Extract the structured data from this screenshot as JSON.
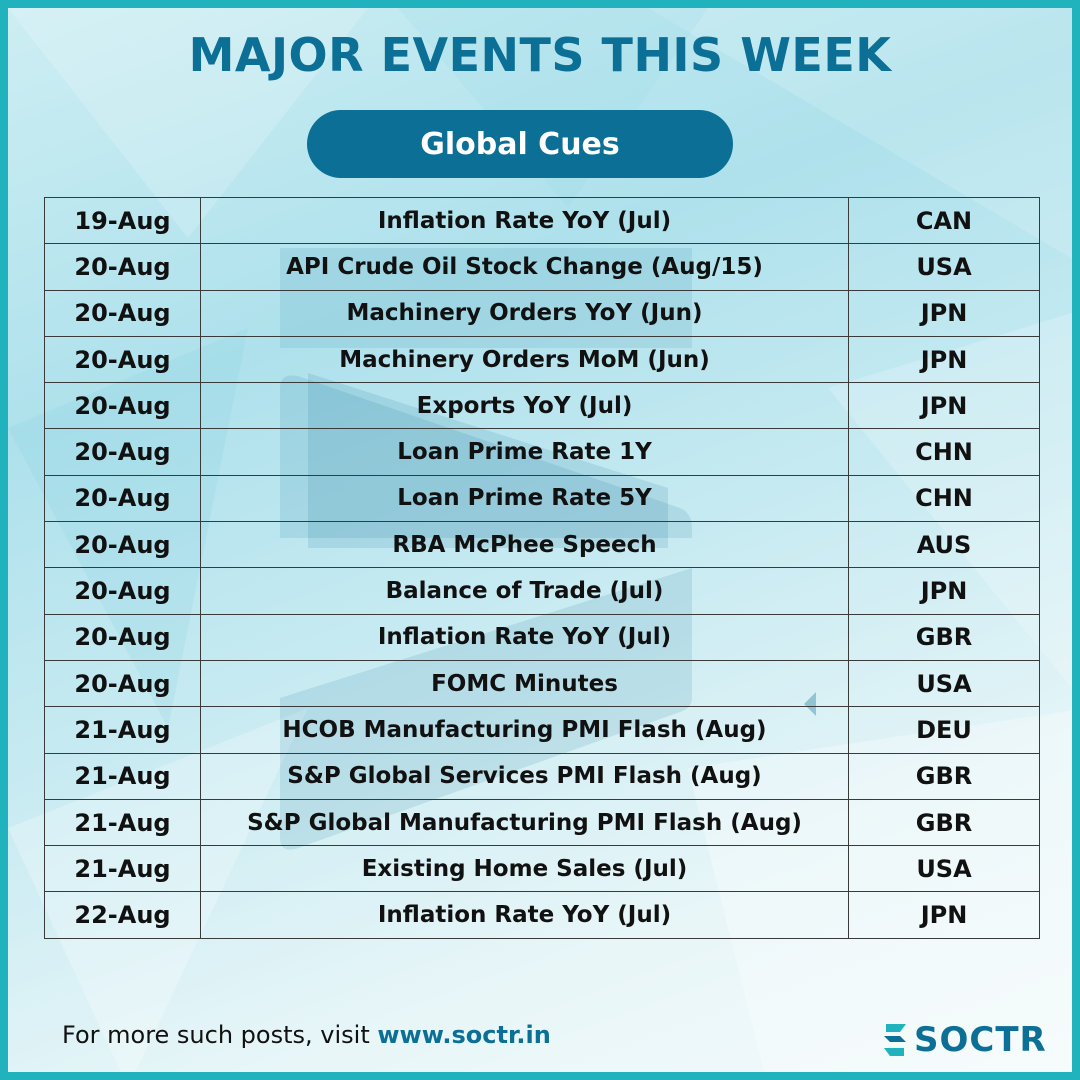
{
  "title": "MAJOR EVENTS THIS WEEK",
  "section_label": "Global Cues",
  "events": [
    {
      "date": "19-Aug",
      "event": "Inflation Rate YoY (Jul)",
      "country": "CAN"
    },
    {
      "date": "20-Aug",
      "event": "API Crude Oil Stock Change (Aug/15)",
      "country": "USA"
    },
    {
      "date": "20-Aug",
      "event": "Machinery Orders YoY (Jun)",
      "country": "JPN"
    },
    {
      "date": "20-Aug",
      "event": "Machinery Orders MoM (Jun)",
      "country": "JPN"
    },
    {
      "date": "20-Aug",
      "event": "Exports YoY (Jul)",
      "country": "JPN"
    },
    {
      "date": "20-Aug",
      "event": "Loan Prime Rate 1Y",
      "country": "CHN"
    },
    {
      "date": "20-Aug",
      "event": "Loan Prime Rate 5Y",
      "country": "CHN"
    },
    {
      "date": "20-Aug",
      "event": "RBA McPhee Speech",
      "country": "AUS"
    },
    {
      "date": "20-Aug",
      "event": "Balance of Trade (Jul)",
      "country": "JPN"
    },
    {
      "date": "20-Aug",
      "event": "Inflation Rate YoY (Jul)",
      "country": "GBR"
    },
    {
      "date": "20-Aug",
      "event": "FOMC Minutes",
      "country": "USA"
    },
    {
      "date": "21-Aug",
      "event": "HCOB Manufacturing PMI Flash (Aug)",
      "country": "DEU"
    },
    {
      "date": "21-Aug",
      "event": "S&P Global Services PMI Flash (Aug)",
      "country": "GBR"
    },
    {
      "date": "21-Aug",
      "event": "S&P Global Manufacturing PMI Flash (Aug)",
      "country": "GBR"
    },
    {
      "date": "21-Aug",
      "event": "Existing Home Sales (Jul)",
      "country": "USA"
    },
    {
      "date": "22-Aug",
      "event": "Inflation Rate YoY (Jul)",
      "country": "JPN"
    }
  ],
  "footer": {
    "text": "For more such posts, visit",
    "link": "www.soctr.in"
  },
  "logo": {
    "text": "SOCTR",
    "icon": "soctr-logo-mark-icon"
  },
  "colors": {
    "brand": "#0c6f95",
    "border": "#21b3bd"
  }
}
